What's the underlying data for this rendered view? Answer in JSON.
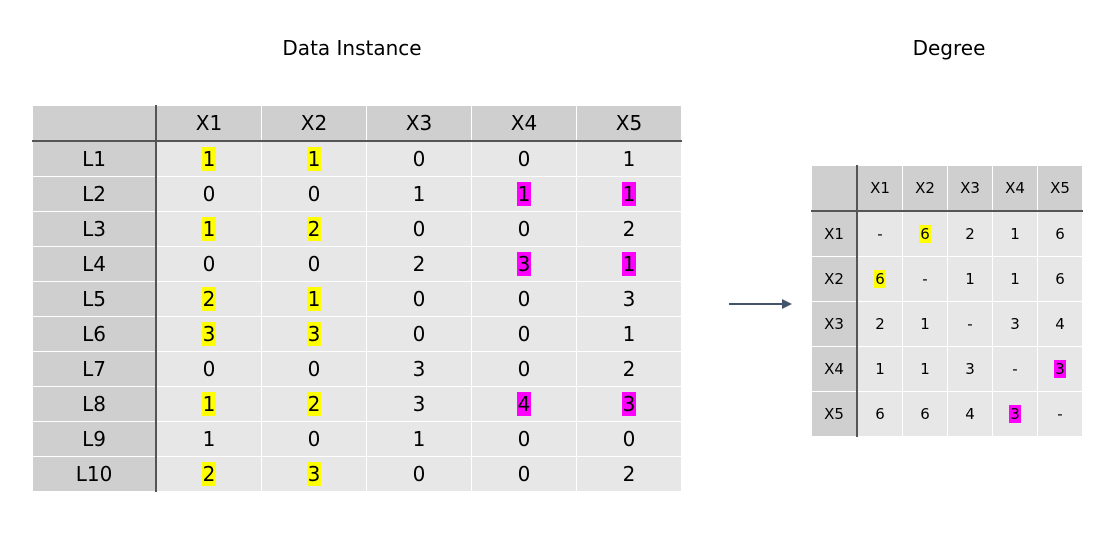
{
  "left_title": "Data Instance",
  "right_title": "Degree",
  "colors": {
    "yellow_highlight": "#ffff00",
    "magenta_highlight": "#ff00ff",
    "header_bg": "#cfcfcf",
    "cell_bg": "#e7e7e7"
  },
  "data_table": {
    "columns": [
      "X1",
      "X2",
      "X3",
      "X4",
      "X5"
    ],
    "rows": [
      {
        "label": "L1",
        "cells": [
          "1",
          "1",
          "0",
          "0",
          "1"
        ],
        "hl": [
          "y",
          "y",
          "",
          "",
          ""
        ]
      },
      {
        "label": "L2",
        "cells": [
          "0",
          "0",
          "1",
          "1",
          "1"
        ],
        "hl": [
          "",
          "",
          "",
          "m",
          "m"
        ]
      },
      {
        "label": "L3",
        "cells": [
          "1",
          "2",
          "0",
          "0",
          "2"
        ],
        "hl": [
          "y",
          "y",
          "",
          "",
          ""
        ]
      },
      {
        "label": "L4",
        "cells": [
          "0",
          "0",
          "2",
          "3",
          "1"
        ],
        "hl": [
          "",
          "",
          "",
          "m",
          "m"
        ]
      },
      {
        "label": "L5",
        "cells": [
          "2",
          "1",
          "0",
          "0",
          "3"
        ],
        "hl": [
          "y",
          "y",
          "",
          "",
          ""
        ]
      },
      {
        "label": "L6",
        "cells": [
          "3",
          "3",
          "0",
          "0",
          "1"
        ],
        "hl": [
          "y",
          "y",
          "",
          "",
          ""
        ]
      },
      {
        "label": "L7",
        "cells": [
          "0",
          "0",
          "3",
          "0",
          "2"
        ],
        "hl": [
          "",
          "",
          "",
          "",
          ""
        ]
      },
      {
        "label": "L8",
        "cells": [
          "1",
          "2",
          "3",
          "4",
          "3"
        ],
        "hl": [
          "y",
          "y",
          "",
          "m",
          "m"
        ]
      },
      {
        "label": "L9",
        "cells": [
          "1",
          "0",
          "1",
          "0",
          "0"
        ],
        "hl": [
          "",
          "",
          "",
          "",
          ""
        ]
      },
      {
        "label": "L10",
        "cells": [
          "2",
          "3",
          "0",
          "0",
          "2"
        ],
        "hl": [
          "y",
          "y",
          "",
          "",
          ""
        ]
      }
    ]
  },
  "degree_table": {
    "columns": [
      "X1",
      "X2",
      "X3",
      "X4",
      "X5"
    ],
    "rows": [
      {
        "label": "X1",
        "cells": [
          "-",
          "6",
          "2",
          "1",
          "6"
        ],
        "hl": [
          "",
          "y",
          "",
          "",
          ""
        ]
      },
      {
        "label": "X2",
        "cells": [
          "6",
          "-",
          "1",
          "1",
          "6"
        ],
        "hl": [
          "y",
          "",
          "",
          "",
          ""
        ]
      },
      {
        "label": "X3",
        "cells": [
          "2",
          "1",
          "-",
          "3",
          "4"
        ],
        "hl": [
          "",
          "",
          "",
          "",
          ""
        ]
      },
      {
        "label": "X4",
        "cells": [
          "1",
          "1",
          "3",
          "-",
          "3"
        ],
        "hl": [
          "",
          "",
          "",
          "",
          "m"
        ]
      },
      {
        "label": "X5",
        "cells": [
          "6",
          "6",
          "4",
          "3",
          "-"
        ],
        "hl": [
          "",
          "",
          "",
          "m",
          ""
        ]
      }
    ]
  }
}
